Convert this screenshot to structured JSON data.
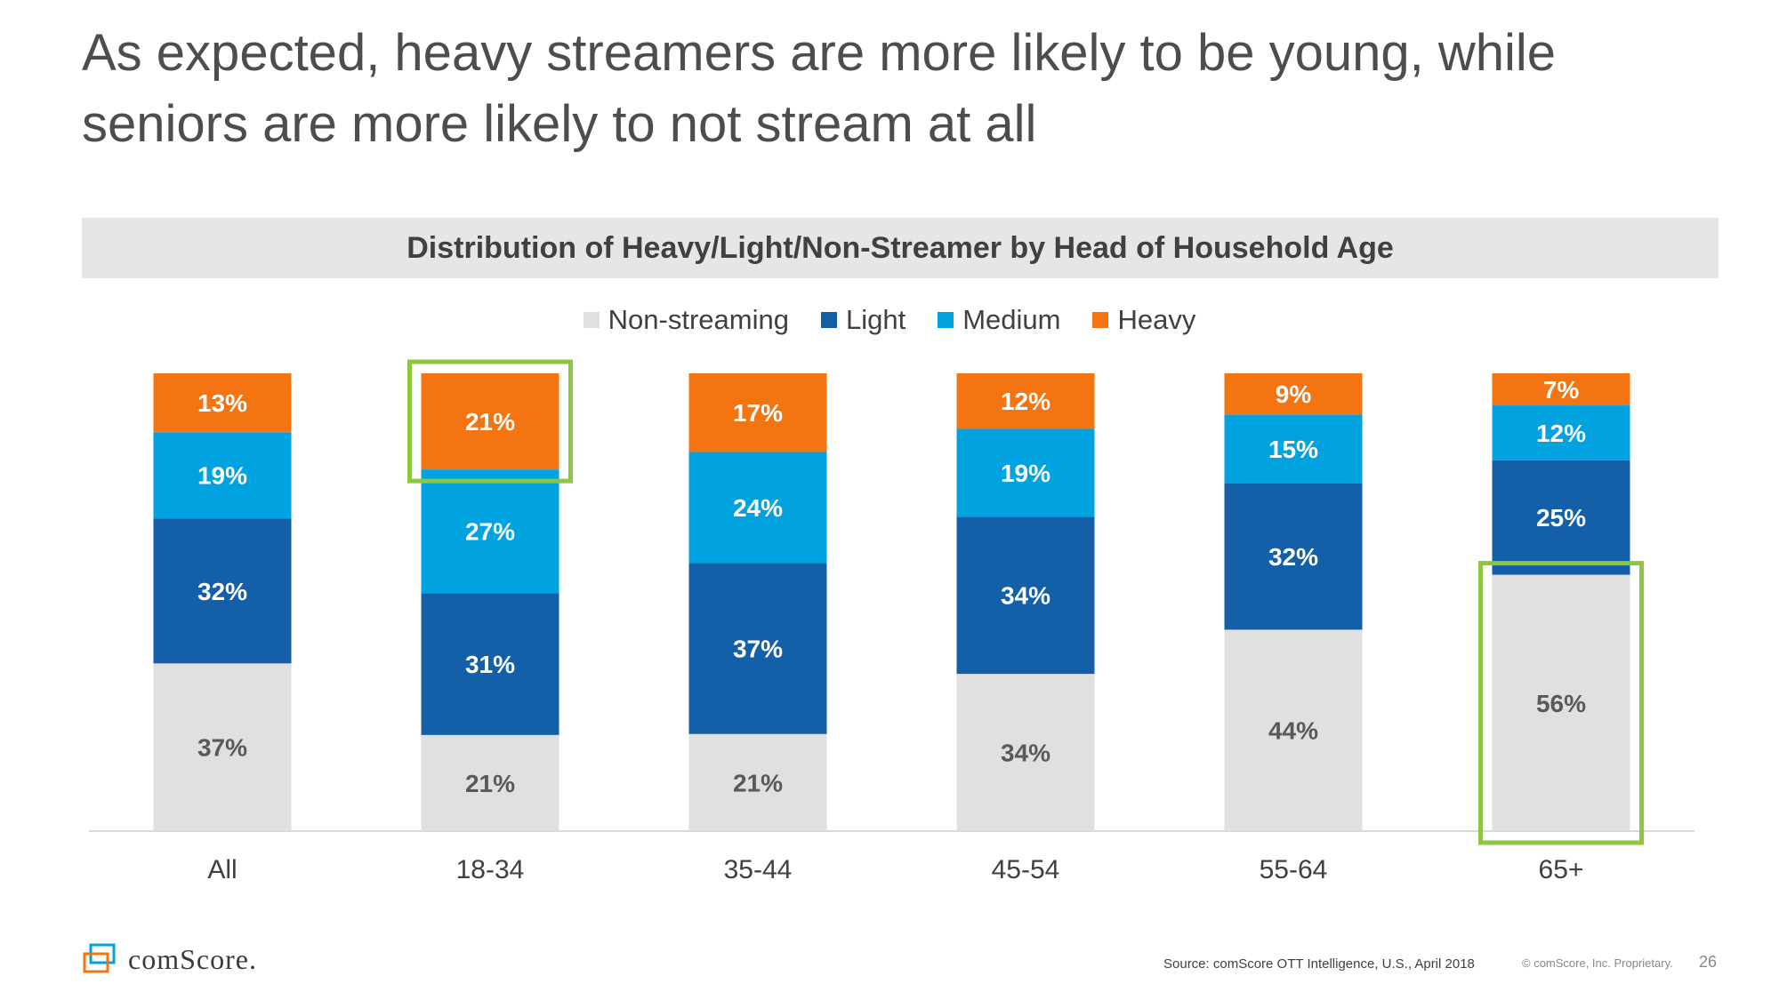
{
  "slide": {
    "title": "As expected, heavy streamers are more likely to be young, while seniors are more likely to not stream at all",
    "source": "Source: comScore OTT Intelligence, U.S., April 2018",
    "copyright": "© comScore, Inc. Proprietary.",
    "page_number": "26",
    "logo_text": "comScore."
  },
  "colors": {
    "non_streaming": "#e0e0e0",
    "light": "#135fa8",
    "medium": "#00a3df",
    "heavy": "#f47412",
    "highlight": "#8dc63f"
  },
  "chart_data": {
    "type": "bar",
    "stacked": true,
    "title": "Distribution of Heavy/Light/Non-Streamer by Head of Household Age",
    "categories": [
      "All",
      "18-34",
      "35-44",
      "45-54",
      "55-64",
      "65+"
    ],
    "series": [
      {
        "name": "Non-streaming",
        "values": [
          37,
          21,
          21,
          34,
          44,
          56
        ],
        "labels": [
          "37%",
          "21%",
          "21%",
          "34%",
          "44%",
          "56%"
        ]
      },
      {
        "name": "Light",
        "values": [
          32,
          31,
          37,
          34,
          32,
          25
        ],
        "labels": [
          "32%",
          "31%",
          "37%",
          "34%",
          "32%",
          "25%"
        ]
      },
      {
        "name": "Medium",
        "values": [
          19,
          27,
          24,
          19,
          15,
          12
        ],
        "labels": [
          "19%",
          "27%",
          "24%",
          "19%",
          "15%",
          "12%"
        ]
      },
      {
        "name": "Heavy",
        "values": [
          13,
          21,
          17,
          12,
          9,
          7
        ],
        "labels": [
          "13%",
          "21%",
          "17%",
          "12%",
          "9%",
          "7%"
        ]
      }
    ],
    "ylim": [
      0,
      100
    ],
    "legend_position": "top",
    "highlights": [
      {
        "category": "18-34",
        "series": "Heavy"
      },
      {
        "category": "65+",
        "series": "Non-streaming"
      }
    ]
  }
}
